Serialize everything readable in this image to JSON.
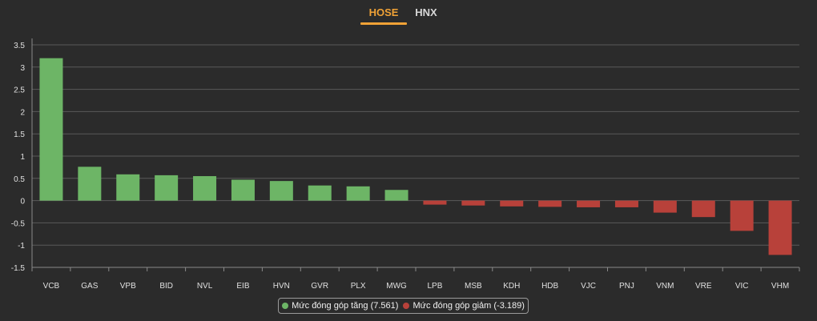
{
  "tabs": [
    {
      "label": "HOSE",
      "active": true
    },
    {
      "label": "HNX",
      "active": false
    }
  ],
  "colors": {
    "positive": "#6db566",
    "negative": "#b8413a",
    "accent": "#f0a236",
    "grid": "#5a5a5a"
  },
  "legend": {
    "positive_label": "Mức đóng góp tăng (7.561)",
    "negative_label": "Mức đóng góp giảm (-3.189)"
  },
  "chart_data": {
    "type": "bar",
    "categories": [
      "VCB",
      "GAS",
      "VPB",
      "BID",
      "NVL",
      "EIB",
      "HVN",
      "GVR",
      "PLX",
      "MWG",
      "LPB",
      "MSB",
      "KDH",
      "HDB",
      "VJC",
      "PNJ",
      "VNM",
      "VRE",
      "VIC",
      "VHM"
    ],
    "values": [
      3.2,
      0.76,
      0.59,
      0.57,
      0.55,
      0.47,
      0.44,
      0.34,
      0.32,
      0.24,
      -0.09,
      -0.11,
      -0.13,
      -0.14,
      -0.15,
      -0.15,
      -0.27,
      -0.37,
      -0.68,
      -1.22
    ],
    "ylim": [
      -1.5,
      3.5
    ],
    "yticks": [
      "3.5",
      "3",
      "2.5",
      "2",
      "1.5",
      "1",
      "0.5",
      "0",
      "-0.5",
      "-1",
      "-1.5"
    ],
    "grid": true,
    "legend_position": "bottom"
  }
}
